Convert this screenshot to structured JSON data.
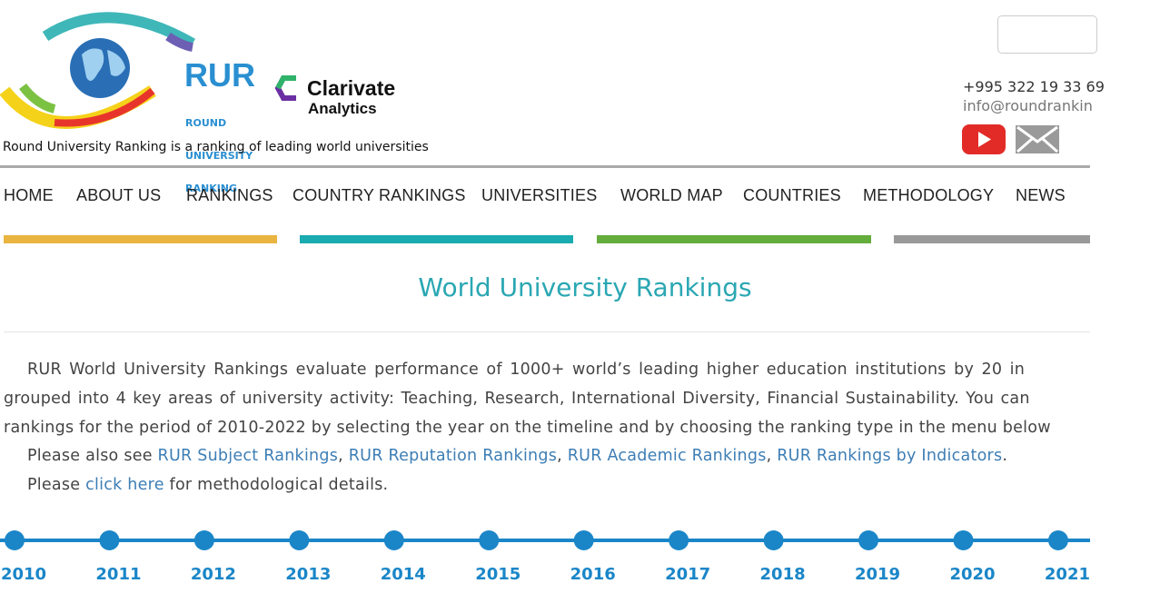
{
  "header": {
    "logo": {
      "acronym": "RUR",
      "name_lines": [
        "ROUND",
        "UNIVERSITY",
        "RANKING"
      ]
    },
    "partner": {
      "name": "Clarivate",
      "sub": "Analytics"
    },
    "tagline": "Round University Ranking is a ranking of leading world universities",
    "contact": {
      "phone": "+995 322 19 33 69",
      "email": "info@roundrankin"
    }
  },
  "nav": [
    "HOME",
    "ABOUT US",
    "RANKINGS",
    "COUNTRY RANKINGS",
    "UNIVERSITIES",
    "WORLD MAP",
    "COUNTRIES",
    "METHODOLOGY",
    "NEWS"
  ],
  "page": {
    "title": "World University Rankings",
    "intro_lines": [
      "RUR World University Rankings evaluate performance of 1000+ world’s leading higher education institutions by 20 in",
      "grouped into 4 key areas of university activity: Teaching, Research, International Diversity, Financial Sustainability. You can",
      "rankings for the period of 2010-2022 by selecting the year on the timeline and by choosing the ranking type in the menu below"
    ],
    "see_also": {
      "prefix": "Please also see ",
      "links": [
        "RUR Subject Rankings",
        "RUR Reputation Rankings",
        "RUR Academic Rankings",
        "RUR Rankings by Indicators"
      ],
      "separator": ", ",
      "suffix": "."
    },
    "details": {
      "prefix": "Please ",
      "link": "click here",
      "suffix": " for methodological details."
    }
  },
  "timeline": {
    "years": [
      "2010",
      "2011",
      "2012",
      "2013",
      "2014",
      "2015",
      "2016",
      "2017",
      "2018",
      "2019",
      "2020",
      "2021"
    ]
  }
}
